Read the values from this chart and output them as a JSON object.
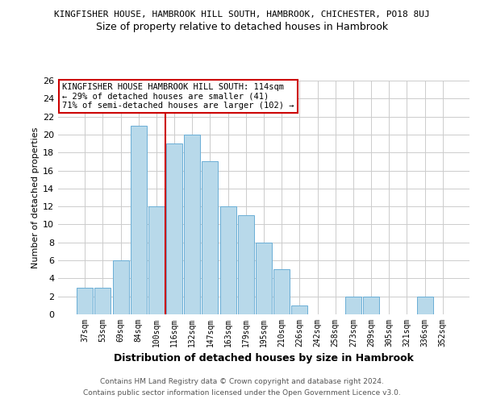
{
  "title_line1": "KINGFISHER HOUSE, HAMBROOK HILL SOUTH, HAMBROOK, CHICHESTER, PO18 8UJ",
  "title_line2": "Size of property relative to detached houses in Hambrook",
  "xlabel": "Distribution of detached houses by size in Hambrook",
  "ylabel": "Number of detached properties",
  "bar_labels": [
    "37sqm",
    "53sqm",
    "69sqm",
    "84sqm",
    "100sqm",
    "116sqm",
    "132sqm",
    "147sqm",
    "163sqm",
    "179sqm",
    "195sqm",
    "210sqm",
    "226sqm",
    "242sqm",
    "258sqm",
    "273sqm",
    "289sqm",
    "305sqm",
    "321sqm",
    "336sqm",
    "352sqm"
  ],
  "bar_values": [
    3,
    3,
    6,
    21,
    12,
    19,
    20,
    17,
    12,
    11,
    8,
    5,
    1,
    0,
    0,
    2,
    2,
    0,
    0,
    2,
    0
  ],
  "bar_color": "#b8d9ea",
  "bar_edge_color": "#6aaed6",
  "highlight_index": 5,
  "highlight_line_color": "#cc0000",
  "annotation_title": "KINGFISHER HOUSE HAMBROOK HILL SOUTH: 114sqm",
  "annotation_line1": "← 29% of detached houses are smaller (41)",
  "annotation_line2": "71% of semi-detached houses are larger (102) →",
  "annotation_box_color": "#ffffff",
  "annotation_box_edge": "#cc0000",
  "ylim": [
    0,
    26
  ],
  "yticks": [
    0,
    2,
    4,
    6,
    8,
    10,
    12,
    14,
    16,
    18,
    20,
    22,
    24,
    26
  ],
  "footer_line1": "Contains HM Land Registry data © Crown copyright and database right 2024.",
  "footer_line2": "Contains public sector information licensed under the Open Government Licence v3.0.",
  "bg_color": "#ffffff",
  "grid_color": "#cccccc"
}
